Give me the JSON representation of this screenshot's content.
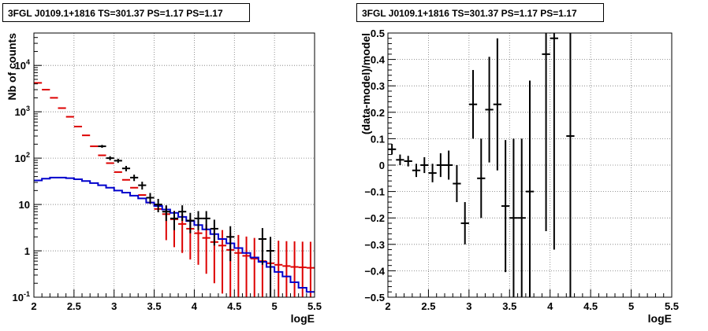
{
  "chart_data": [
    {
      "type": "histogram",
      "title": "3FGL J0109.1+1816 TS=301.37 PS=1.17 PS=1.17",
      "xlabel": "logE",
      "ylabel": "Nb of counts",
      "xlim": [
        2,
        5.5
      ],
      "ylim": [
        0.1,
        50000
      ],
      "yscale": "log",
      "grid": true,
      "x_ticks": [
        "2",
        "2.5",
        "3",
        "3.5",
        "4",
        "4.5",
        "5",
        "5.5"
      ],
      "y_ticks": [
        "10^{-1}",
        "1",
        "10",
        "10^{2}",
        "10^{3}",
        "10^{4}"
      ],
      "bin_width": 0.1,
      "series": [
        {
          "role": "model-total",
          "color": "#dd0000",
          "bin_centers": [
            2.05,
            2.15,
            2.25,
            2.35,
            2.45,
            2.55,
            2.65,
            2.75,
            2.85,
            2.95,
            3.05,
            3.15,
            3.25,
            3.35,
            3.45,
            3.55,
            3.65,
            3.75,
            3.85,
            3.95,
            4.05,
            4.15,
            4.25,
            4.35,
            4.45,
            4.55,
            4.65,
            4.75,
            4.85,
            4.95,
            5.05,
            5.15,
            5.25,
            5.35,
            5.45
          ],
          "values": [
            4200,
            3000,
            2000,
            1200,
            780,
            480,
            310,
            180,
            115,
            78,
            50,
            34,
            23,
            16,
            11,
            8,
            6.2,
            4.8,
            3.8,
            3.0,
            2.4,
            1.9,
            1.55,
            1.3,
            1.05,
            0.9,
            0.78,
            0.68,
            0.6,
            0.54,
            0.5,
            0.47,
            0.45,
            0.44,
            0.43
          ],
          "err_low": [
            0,
            0,
            0,
            0,
            0,
            0,
            0,
            0,
            0,
            0,
            0,
            0,
            0,
            0,
            0,
            0,
            4.5,
            3.6,
            2.9,
            2.35,
            1.9,
            1.58,
            1.35,
            1.18,
            1.0,
            0.88,
            0.77,
            0.68,
            0.6,
            0.54,
            0.5,
            0.47,
            0.45,
            0.44,
            0.43
          ],
          "err_high": [
            0,
            0,
            0,
            0,
            0,
            0,
            0,
            0,
            0,
            0,
            0,
            0,
            0,
            0,
            0,
            0,
            3.0,
            2.5,
            2.3,
            2.1,
            2.0,
            1.8,
            1.6,
            1.5,
            1.4,
            1.3,
            1.25,
            1.22,
            1.2,
            1.18,
            1.16,
            1.15,
            1.15,
            1.14,
            1.14
          ]
        },
        {
          "role": "source-model",
          "color": "#0000cc",
          "bin_edges": [
            2.0,
            2.1,
            2.2,
            2.3,
            2.4,
            2.5,
            2.6,
            2.7,
            2.8,
            2.9,
            3.0,
            3.1,
            3.2,
            3.3,
            3.4,
            3.5,
            3.6,
            3.7,
            3.8,
            3.9,
            4.0,
            4.1,
            4.2,
            4.3,
            4.4,
            4.5,
            4.6,
            4.7,
            4.8,
            4.9,
            5.0,
            5.1,
            5.2,
            5.3,
            5.4,
            5.5
          ],
          "values": [
            33,
            36,
            38,
            38,
            37,
            35,
            32,
            29,
            26,
            23,
            20,
            18,
            15.5,
            13.5,
            11,
            9.3,
            7.8,
            6.6,
            5.4,
            4.4,
            3.6,
            2.9,
            2.3,
            1.8,
            1.45,
            1.15,
            0.9,
            0.72,
            0.58,
            0.45,
            0.35,
            0.28,
            0.21,
            0.16,
            0.13
          ]
        },
        {
          "role": "data",
          "color": "#000000",
          "x": [
            2.85,
            2.95,
            3.05,
            3.15,
            3.25,
            3.35,
            3.45,
            3.55,
            3.65,
            3.75,
            3.85,
            3.95,
            4.05,
            4.15,
            4.25,
            4.45,
            4.85,
            4.95
          ],
          "y": [
            180,
            100,
            88,
            60,
            38,
            26,
            14,
            10,
            7,
            5,
            7,
            4.5,
            5,
            5,
            3,
            2,
            1.8,
            1.0
          ],
          "err": [
            13,
            10,
            9,
            8,
            6,
            5,
            3.7,
            3.2,
            2.6,
            2.2,
            2.6,
            2.1,
            2.2,
            2.2,
            1.7,
            1.4,
            1.3,
            1.0
          ]
        }
      ]
    },
    {
      "type": "scatter",
      "title": "3FGL J0109.1+1816 TS=301.37 PS=1.17 PS=1.17",
      "xlabel": "logE",
      "ylabel": "(data-model)/model",
      "xlim": [
        2,
        5.5
      ],
      "ylim": [
        -0.5,
        0.5
      ],
      "grid": true,
      "x_ticks": [
        "2",
        "2.5",
        "3",
        "3.5",
        "4",
        "4.5",
        "5",
        "5.5"
      ],
      "y_ticks": [
        "-0.5",
        "-0.4",
        "-0.3",
        "-0.2",
        "-0.1",
        "0",
        "0.1",
        "0.2",
        "0.3",
        "0.4",
        "0.5"
      ],
      "series": [
        {
          "role": "residuals",
          "color": "#000000",
          "x": [
            2.05,
            2.15,
            2.25,
            2.35,
            2.45,
            2.55,
            2.65,
            2.75,
            2.85,
            2.95,
            3.05,
            3.15,
            3.25,
            3.35,
            3.45,
            3.55,
            3.65,
            3.75,
            3.95,
            4.05,
            4.25
          ],
          "y": [
            0.06,
            0.02,
            0.015,
            -0.02,
            0.0,
            -0.03,
            0.0,
            0.0,
            -0.07,
            -0.22,
            0.23,
            -0.05,
            0.21,
            0.23,
            -0.155,
            -0.2,
            -0.2,
            -0.1,
            0.42,
            0.48,
            0.11
          ],
          "err": [
            0.02,
            0.02,
            0.02,
            0.025,
            0.03,
            0.035,
            0.045,
            0.055,
            0.07,
            0.08,
            0.13,
            0.15,
            0.2,
            0.25,
            0.25,
            0.3,
            0.3,
            0.42,
            0.67,
            0.8,
            0.9
          ]
        }
      ]
    }
  ]
}
